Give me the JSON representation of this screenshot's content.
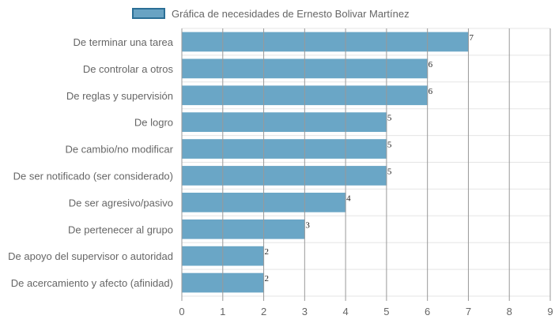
{
  "legend": {
    "label": "Gráfica de necesidades de Ernesto Bolivar Martínez"
  },
  "colors": {
    "bar_fill": "#6aa6c6",
    "bar_border": "#2b6f96",
    "grid": "#e5e5e5",
    "axis_grid": "#999999"
  },
  "chart_data": {
    "type": "bar",
    "orientation": "horizontal",
    "title": "",
    "xlabel": "",
    "ylabel": "",
    "xlim": [
      0,
      9
    ],
    "x_ticks": [
      0,
      1,
      2,
      3,
      4,
      5,
      6,
      7,
      8,
      9
    ],
    "grid": true,
    "legend_position": "top",
    "series": [
      {
        "name": "Gráfica de necesidades de Ernesto Bolivar Martínez",
        "values": [
          7,
          6,
          6,
          5,
          5,
          5,
          4,
          3,
          2,
          2
        ]
      }
    ],
    "categories": [
      "De terminar una tarea",
      "De controlar a otros",
      "De reglas y supervisión",
      "De logro",
      "De cambio/no modificar",
      "De ser notificado (ser considerado)",
      "De ser agresivo/pasivo",
      "De pertenecer al grupo",
      "De apoyo del supervisor o autoridad",
      "De acercamiento y afecto (afinidad)"
    ],
    "data_labels": [
      "7",
      "6",
      "6",
      "5",
      "5",
      "5",
      "4",
      "3",
      "2",
      "2"
    ]
  }
}
